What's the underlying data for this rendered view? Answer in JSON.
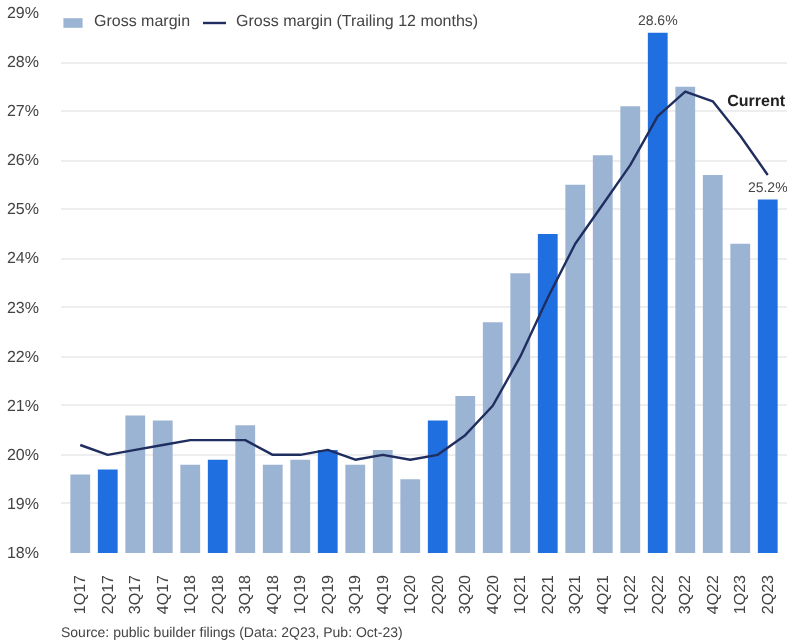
{
  "chart_data": {
    "type": "bar",
    "categories": [
      "1Q17",
      "2Q17",
      "3Q17",
      "4Q17",
      "1Q18",
      "2Q18",
      "3Q18",
      "4Q18",
      "1Q19",
      "2Q19",
      "3Q19",
      "4Q19",
      "1Q20",
      "2Q20",
      "3Q20",
      "4Q20",
      "1Q21",
      "2Q21",
      "3Q21",
      "4Q21",
      "1Q22",
      "2Q22",
      "3Q22",
      "4Q22",
      "1Q23",
      "2Q23"
    ],
    "series": [
      {
        "name": "Gross margin",
        "colors": [
          "#9cb4d4",
          "#1f6fe0",
          "#9cb4d4",
          "#9cb4d4",
          "#9cb4d4",
          "#1f6fe0",
          "#9cb4d4",
          "#9cb4d4",
          "#9cb4d4",
          "#1f6fe0",
          "#9cb4d4",
          "#9cb4d4",
          "#9cb4d4",
          "#1f6fe0",
          "#9cb4d4",
          "#9cb4d4",
          "#9cb4d4",
          "#1f6fe0",
          "#9cb4d4",
          "#9cb4d4",
          "#9cb4d4",
          "#1f6fe0",
          "#9cb4d4",
          "#9cb4d4",
          "#9cb4d4",
          "#1f6fe0"
        ],
        "values": [
          19.6,
          19.7,
          20.8,
          20.7,
          19.8,
          19.9,
          20.6,
          19.8,
          19.9,
          20.1,
          19.8,
          20.1,
          19.5,
          20.7,
          21.2,
          22.7,
          23.7,
          24.5,
          25.5,
          26.1,
          27.1,
          28.6,
          27.5,
          25.7,
          24.3,
          25.2
        ],
        "value_labels": [
          null,
          null,
          null,
          null,
          null,
          null,
          null,
          null,
          null,
          null,
          null,
          null,
          null,
          null,
          null,
          null,
          null,
          null,
          null,
          null,
          null,
          "28.6%",
          null,
          null,
          null,
          "25.2%"
        ]
      },
      {
        "name": "Gross margin (Trailing 12 months)",
        "type": "line",
        "color": "#1f2e5e",
        "values": [
          20.2,
          20.0,
          20.1,
          20.2,
          20.3,
          20.3,
          20.3,
          20.0,
          20.0,
          20.1,
          19.9,
          20.0,
          19.9,
          20.0,
          20.4,
          21.0,
          22.0,
          23.2,
          24.3,
          25.1,
          25.9,
          26.9,
          27.4,
          27.2,
          26.5,
          25.7
        ]
      }
    ],
    "ylim": [
      18,
      29
    ],
    "yticks": [
      {
        "value": 18,
        "label": "18%"
      },
      {
        "value": 19,
        "label": "19%"
      },
      {
        "value": 20,
        "label": "20%"
      },
      {
        "value": 21,
        "label": "21%"
      },
      {
        "value": 22,
        "label": "22%"
      },
      {
        "value": 23,
        "label": "23%"
      },
      {
        "value": 24,
        "label": "24%"
      },
      {
        "value": 25,
        "label": "25%"
      },
      {
        "value": 26,
        "label": "26%"
      },
      {
        "value": 27,
        "label": "27%"
      },
      {
        "value": 28,
        "label": "28%"
      },
      {
        "value": 29,
        "label": "29%"
      }
    ],
    "grid": "y",
    "legend": "top left",
    "line_style": "solid",
    "annotations": [
      "Current",
      "Source: public builder filings (Data: 2Q23, Pub: Oct-23)"
    ]
  }
}
